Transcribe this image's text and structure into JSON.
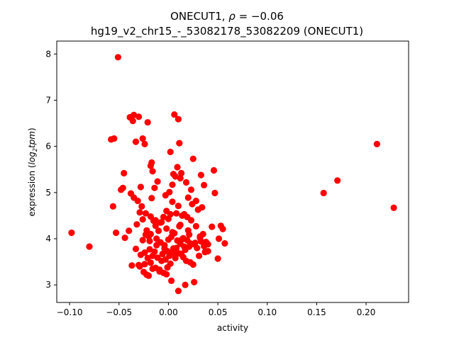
{
  "chart_data": {
    "type": "scatter",
    "title_gene": "ONECUT1",
    "title_rho_label": "ρ",
    "title_rho_value": "−0.06",
    "subtitle": "hg19_v2_chr15_-_53082178_53082209 (ONECUT1)",
    "xlabel": "activity",
    "ylabel_prefix": "expression (",
    "ylabel_log": "log",
    "ylabel_sub": "2",
    "ylabel_unit": "tpm",
    "ylabel_suffix": ")",
    "xlim": [
      -0.113,
      0.243
    ],
    "ylim": [
      2.62,
      8.28
    ],
    "xticks": [
      -0.1,
      -0.05,
      0.0,
      0.05,
      0.1,
      0.15,
      0.2
    ],
    "xtick_labels": [
      "−0.10",
      "−0.05",
      "0.00",
      "0.05",
      "0.10",
      "0.15",
      "0.20"
    ],
    "yticks": [
      3,
      4,
      5,
      6,
      7,
      8
    ],
    "ytick_labels": [
      "3",
      "4",
      "5",
      "6",
      "7",
      "8"
    ],
    "grid": false,
    "marker_color": "#ff0000",
    "x": [
      -0.098,
      -0.08,
      -0.051,
      -0.058,
      -0.055,
      -0.056,
      -0.053,
      -0.048,
      -0.046,
      -0.045,
      -0.044,
      -0.04,
      -0.039,
      -0.036,
      -0.035,
      -0.033,
      -0.03,
      -0.028,
      -0.026,
      -0.024,
      -0.021,
      -0.018,
      -0.017,
      -0.016,
      0.006,
      0.01,
      0.011,
      0.002,
      0.007,
      0.004,
      0.013,
      0.025,
      0.033,
      0.036,
      0.046,
      0.047,
      0.044,
      0.053,
      0.055,
      0.057,
      0.051,
      0.04,
      0.05,
      0.037,
      0.033,
      0.032,
      0.021,
      0.02,
      0.024,
      0.03,
      0.023,
      0.016,
      0.014,
      0.012,
      0.01,
      0.008,
      0.004,
      0.002,
      0.0,
      -0.002,
      -0.005,
      -0.008,
      -0.01,
      -0.013,
      -0.015,
      -0.02,
      -0.023,
      -0.027,
      -0.029,
      -0.031,
      -0.035,
      -0.038,
      -0.032,
      -0.026,
      -0.022,
      -0.018,
      -0.012,
      -0.008,
      -0.004,
      0.0,
      0.003,
      0.006,
      0.009,
      0.012,
      0.016,
      0.019,
      0.022,
      0.026,
      0.029,
      0.032,
      0.035,
      0.038,
      0.028,
      0.02,
      0.015,
      0.005,
      -0.001,
      -0.006,
      -0.014,
      -0.019,
      -0.024,
      -0.028,
      -0.021,
      -0.016,
      -0.011,
      -0.007,
      -0.003,
      0.001,
      0.004,
      0.008,
      0.011,
      0.015,
      0.018,
      0.022,
      0.025,
      0.031,
      0.036,
      0.04,
      0.026,
      0.017,
      0.01,
      0.003,
      -0.002,
      -0.009,
      -0.016,
      -0.022,
      -0.029,
      -0.024,
      -0.018,
      -0.013,
      -0.009,
      -0.005,
      -0.001,
      0.002,
      0.007,
      0.013,
      0.017,
      0.021,
      0.027,
      0.014,
      0.006,
      -0.004,
      -0.012,
      -0.019,
      -0.026,
      -0.033,
      -0.037,
      -0.03,
      -0.025,
      -0.02,
      -0.017,
      -0.014,
      -0.011,
      -0.003,
      0.001,
      0.005,
      0.009,
      0.012,
      0.018,
      0.023,
      0.028,
      0.034,
      0.019,
      0.011,
      0.004,
      -0.002,
      -0.007,
      -0.013,
      -0.018,
      -0.023,
      0.157,
      0.171,
      0.211,
      0.228
    ],
    "y": [
      4.13,
      3.83,
      7.93,
      6.15,
      6.17,
      4.7,
      4.13,
      5.06,
      5.1,
      5.42,
      4.02,
      4.17,
      6.63,
      6.55,
      6.68,
      6.1,
      6.64,
      5.12,
      6.17,
      6.05,
      6.52,
      5.58,
      5.65,
      5.46,
      6.69,
      6.59,
      6.07,
      5.88,
      5.35,
      5.17,
      5.42,
      5.73,
      5.38,
      5.16,
      5.48,
      4.99,
      4.26,
      4.28,
      4.21,
      3.9,
      4.0,
      3.88,
      3.57,
      3.71,
      3.94,
      4.02,
      4.09,
      4.89,
      4.75,
      4.63,
      4.4,
      4.53,
      4.5,
      4.3,
      4.71,
      4.55,
      4.8,
      4.53,
      4.43,
      4.6,
      4.47,
      4.35,
      4.17,
      4.28,
      4.39,
      4.05,
      4.09,
      4.7,
      4.57,
      4.82,
      4.89,
      4.98,
      4.31,
      4.42,
      4.18,
      4.1,
      4.0,
      3.92,
      3.86,
      3.98,
      4.04,
      4.12,
      3.96,
      3.89,
      3.83,
      3.97,
      3.9,
      3.88,
      3.8,
      4.05,
      4.1,
      3.93,
      4.27,
      4.18,
      4.01,
      3.79,
      3.73,
      3.67,
      3.72,
      3.77,
      3.7,
      3.65,
      3.58,
      3.63,
      3.59,
      3.52,
      3.55,
      3.63,
      3.71,
      3.8,
      3.68,
      3.6,
      3.52,
      3.49,
      3.44,
      3.63,
      3.84,
      3.73,
      3.06,
      3.0,
      2.87,
      3.09,
      3.23,
      3.29,
      3.35,
      3.22,
      3.4,
      3.45,
      3.48,
      3.37,
      3.33,
      3.26,
      3.38,
      3.46,
      3.58,
      3.67,
      3.76,
      3.83,
      3.91,
      3.99,
      3.68,
      3.79,
      3.86,
      3.95,
      3.97,
      3.78,
      3.42,
      3.43,
      3.28,
      3.2,
      4.88,
      5.1,
      5.24,
      4.94,
      5.01,
      5.4,
      5.55,
      5.31,
      5.22,
      5.06,
      4.82,
      4.68,
      4.47,
      4.27,
      4.14,
      4.22,
      4.36,
      4.4,
      4.48,
      4.55,
      4.99,
      5.26,
      6.05,
      4.67
    ]
  }
}
